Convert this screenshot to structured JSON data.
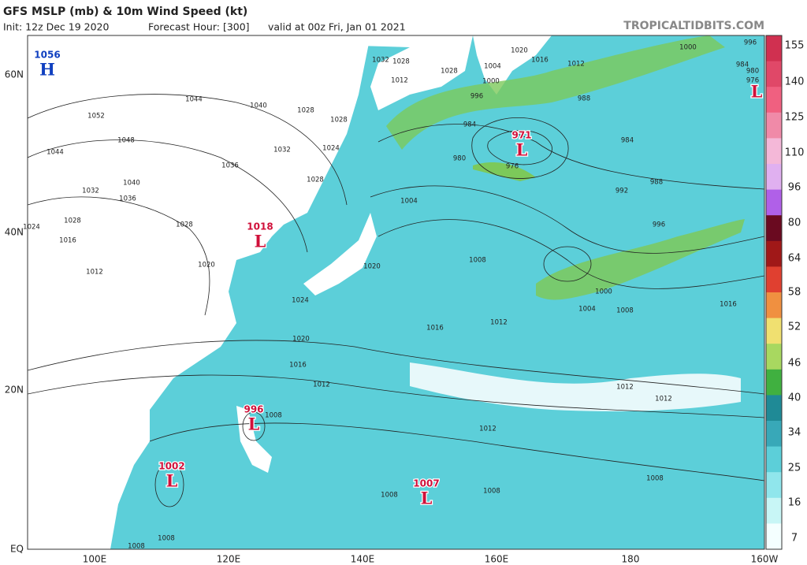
{
  "header": {
    "title": "GFS MSLP (mb) & 10m Wind Speed (kt)",
    "init": "Init: 12z Dec 19 2020",
    "forecast": "Forecast Hour: [300]",
    "valid": "valid at 00z Fri, Jan 01 2021",
    "site": "TROPICALTIDBITS.COM"
  },
  "axes": {
    "lat": [
      "60N",
      "40N",
      "20N",
      "EQ"
    ],
    "lon": [
      "100E",
      "120E",
      "140E",
      "160E",
      "180",
      "160W"
    ]
  },
  "colorbar": {
    "labels": [
      155,
      140,
      125,
      110,
      96,
      80,
      64,
      58,
      52,
      46,
      40,
      34,
      25,
      16,
      7
    ]
  },
  "centers": [
    {
      "letter": "H",
      "value": 1056
    },
    {
      "letter": "L",
      "value": 1018
    },
    {
      "letter": "L",
      "value": 971
    },
    {
      "letter": "L",
      "value": 996
    },
    {
      "letter": "L",
      "value": 1002
    },
    {
      "letter": "L",
      "value": 1007
    },
    {
      "letter": "L"
    }
  ],
  "isobar_labels": [
    1052,
    1048,
    1044,
    1040,
    1036,
    1032,
    1028,
    1024,
    1016,
    1012,
    1044,
    1040,
    1036,
    1032,
    1028,
    1020,
    1024,
    1020,
    1016,
    1012,
    1008,
    1004,
    992,
    988,
    996,
    1000,
    1004,
    1008,
    1016,
    1020,
    1016,
    1012,
    1012,
    1012,
    1012,
    1008,
    1008,
    1008,
    1008,
    1008,
    1008,
    988,
    984,
    1012,
    1028,
    1032,
    1020,
    1016,
    984,
    980,
    976,
    996,
    1000,
    1004,
    1012,
    1000,
    996,
    984,
    980,
    976,
    1028,
    1024,
    1028,
    1028,
    1028
  ]
}
